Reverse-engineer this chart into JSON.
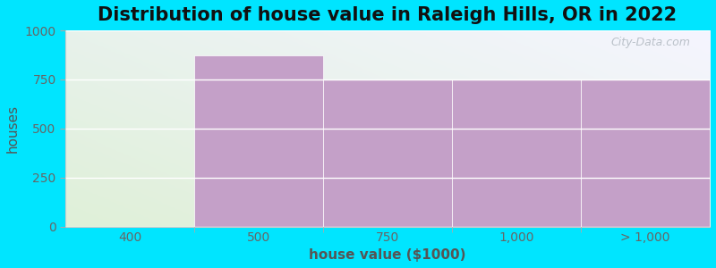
{
  "title": "Distribution of house value in Raleigh Hills, OR in 2022",
  "xlabel": "house value ($1000)",
  "ylabel": "houses",
  "bar_labels": [
    "400",
    "500",
    "750",
    "1,000",
    "> 1,000"
  ],
  "values": [
    0,
    875,
    750,
    750,
    750
  ],
  "bar_colors": [
    "#d6edc9",
    "#c4a0c8",
    "#c4a0c8",
    "#c4a0c8",
    "#c4a0c8"
  ],
  "ylim": [
    0,
    1000
  ],
  "yticks": [
    0,
    250,
    500,
    750,
    1000
  ],
  "background_color": "#00e5ff",
  "plot_bg_top_left": "#e8f5e0",
  "plot_bg_top_right": "#f0f4f8",
  "plot_bg_bottom": "#f0f8ea",
  "grid_color": "#ffffff",
  "title_fontsize": 15,
  "axis_fontsize": 11,
  "tick_fontsize": 10,
  "title_color": "#111111",
  "axis_label_color": "#555555",
  "tick_color": "#666666",
  "watermark_text": "City-Data.com",
  "bar_edge_color": "#ffffff",
  "segment_boundaries": [
    0,
    1,
    2,
    3,
    4,
    5
  ]
}
